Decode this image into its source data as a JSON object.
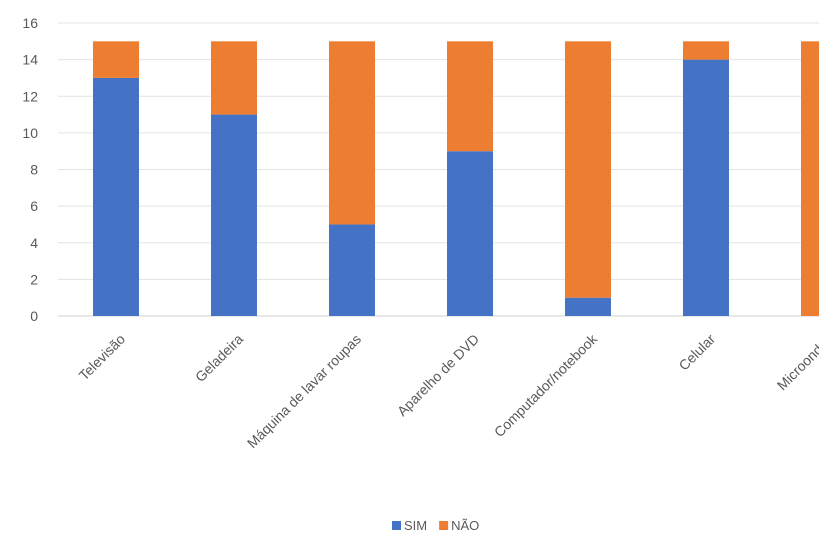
{
  "chart_data": {
    "type": "bar",
    "stacked": true,
    "title": "",
    "xlabel": "",
    "ylabel": "",
    "ylim": [
      0,
      16
    ],
    "yticks": [
      0,
      2,
      4,
      6,
      8,
      10,
      12,
      14,
      16
    ],
    "grid": true,
    "legend_position": "bottom",
    "categories": [
      "Televisão",
      "Geladeira",
      "Máquina de lavar roupas",
      "Aparelho de DVD",
      "Computador/notebook",
      "Celular",
      "Microondas"
    ],
    "series": [
      {
        "name": "SIM",
        "color": "#4472C4",
        "values": [
          13,
          11,
          5,
          9,
          1,
          14,
          0
        ]
      },
      {
        "name": "NÃO",
        "color": "#ED7D31",
        "values": [
          2,
          4,
          10,
          6,
          14,
          1,
          15
        ]
      }
    ]
  }
}
